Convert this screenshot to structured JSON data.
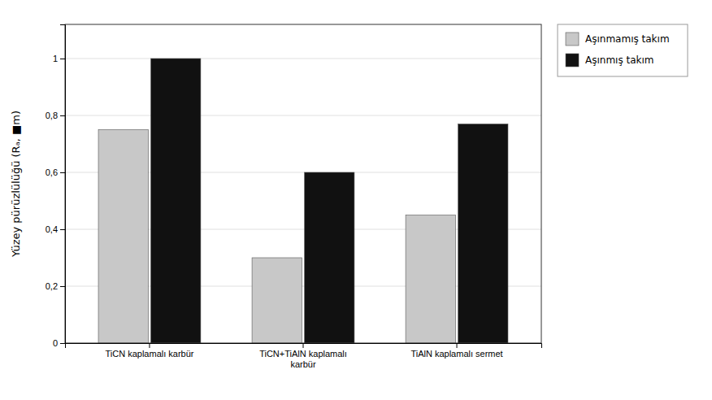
{
  "chart_data": {
    "type": "bar",
    "categories": [
      "TiCN kaplamalı karbür",
      "TiCN+TiAlN kaplamalı\nkarbür",
      "TiAlN kaplamalı sermet"
    ],
    "series": [
      {
        "name": "Aşınmamış takım",
        "color": "#c8c8c8",
        "values": [
          0.75,
          0.3,
          0.45
        ]
      },
      {
        "name": "Aşınmış takım",
        "color": "#111111",
        "values": [
          1.0,
          0.6,
          0.77
        ]
      }
    ],
    "ylabel": "Yüzey pürüzlülüğü (Rₐ, ■m)",
    "ylim": [
      0,
      1.12
    ],
    "yticks": [
      0,
      {
        "value": 0.2,
        "label": "0,2"
      },
      {
        "value": 0.4,
        "label": "0,4"
      },
      {
        "value": 0.6,
        "label": "0,6"
      },
      {
        "value": 0.8,
        "label": "0,8"
      },
      1
    ],
    "grid": true,
    "legend": "right"
  }
}
